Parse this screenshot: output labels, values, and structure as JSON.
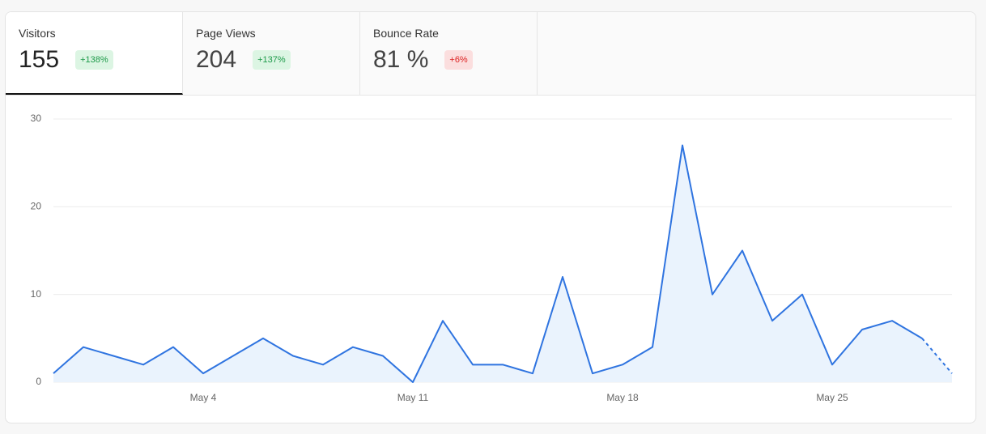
{
  "tabs": [
    {
      "label": "Visitors",
      "value": "155",
      "change": "+138%",
      "trend": "up"
    },
    {
      "label": "Page Views",
      "value": "204",
      "change": "+137%",
      "trend": "up"
    },
    {
      "label": "Bounce Rate",
      "value": "81 %",
      "change": "+6%",
      "trend": "down"
    }
  ],
  "chart_data": {
    "type": "line",
    "categories": [
      null,
      null,
      null,
      null,
      null,
      "May 4",
      null,
      null,
      null,
      null,
      null,
      null,
      "May 11",
      null,
      null,
      null,
      null,
      null,
      null,
      "May 18",
      null,
      null,
      null,
      null,
      null,
      null,
      "May 25",
      null,
      null,
      null,
      null
    ],
    "series": [
      {
        "name": "Visitors",
        "color": "#2f74e0",
        "fill": "#eaf3fd",
        "values": [
          1,
          4,
          3,
          2,
          4,
          1,
          3,
          5,
          3,
          2,
          4,
          3,
          0,
          7,
          2,
          2,
          1,
          12,
          1,
          2,
          4,
          27,
          10,
          15,
          7,
          10,
          2,
          6,
          7,
          5,
          1
        ]
      }
    ],
    "ylim": [
      0,
      30
    ],
    "yticks": [
      0,
      10,
      20,
      30
    ],
    "grid": true,
    "dashed_last_segment": true
  }
}
